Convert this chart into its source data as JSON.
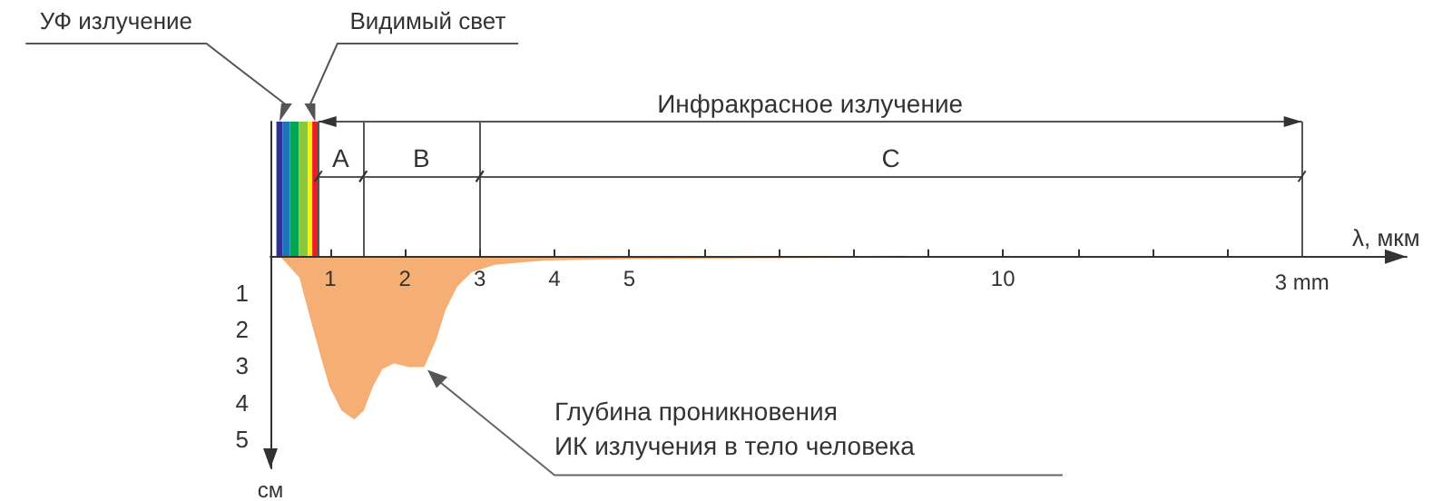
{
  "chart_data": {
    "type": "area",
    "xlabel": "λ, мкм",
    "ylabel": "см",
    "x": [
      0.35,
      0.6,
      0.76,
      0.88,
      1.0,
      1.16,
      1.32,
      1.44,
      1.56,
      1.69,
      1.85,
      2.05,
      2.25,
      2.41,
      2.53,
      2.69,
      2.89,
      3.2,
      3.86,
      4.96,
      8.7
    ],
    "series": [
      {
        "color": "#f5ae74",
        "values": [
          0,
          0.57,
          1.8,
          2.7,
          3.55,
          4.2,
          4.43,
          4.2,
          3.55,
          3.06,
          2.9,
          3.0,
          3.0,
          2.25,
          1.45,
          0.8,
          0.4,
          0.2,
          0.08,
          0.04,
          0
        ]
      }
    ],
    "xlim": [
      0.2,
      15.4
    ],
    "xticks": [
      1,
      2,
      3,
      4,
      5,
      {
        "value": 6,
        "label": null
      },
      {
        "value": 7,
        "label": null
      },
      {
        "value": 8,
        "label": null
      },
      {
        "value": 9,
        "label": null
      },
      10,
      {
        "value": 11,
        "label": null
      },
      {
        "value": 12,
        "label": null
      },
      {
        "value": 13,
        "label": null
      }
    ],
    "ylim": [
      5.8,
      -3.7
    ],
    "yticks": [
      1,
      2,
      3,
      4,
      5
    ],
    "marker": "none",
    "bands": [
      {
        "axis": "x",
        "from": 0.28,
        "to": 0.36,
        "color": "#2e3192"
      },
      {
        "axis": "x",
        "from": 0.36,
        "to": 0.46,
        "color": "#1b75bc"
      },
      {
        "axis": "x",
        "from": 0.46,
        "to": 0.58,
        "color": "#00a651"
      },
      {
        "axis": "x",
        "from": 0.58,
        "to": 0.7,
        "color": "#8dc63f"
      },
      {
        "axis": "x",
        "from": 0.7,
        "to": 0.76,
        "color": "#fff200"
      },
      {
        "axis": "x",
        "from": 0.76,
        "to": 0.84,
        "color": "#ed1c24"
      }
    ],
    "ref_lines": [
      {
        "axis": "y",
        "value": -2.2
      },
      {
        "axis": "x",
        "value": 0.84
      },
      {
        "axis": "x",
        "value": 1.44
      },
      {
        "axis": "x",
        "value": 3
      },
      {
        "axis": "x",
        "value": 14,
        "label": "3 mm"
      }
    ],
    "annotations": [
      "УФ излучение",
      "Видимый свет",
      "Инфракрасное излучение",
      "A",
      "B",
      "C",
      {
        "text": "Глубина проникновения\nИК излучения в тело человека",
        "x": 2.3,
        "y": 3.1
      }
    ]
  }
}
